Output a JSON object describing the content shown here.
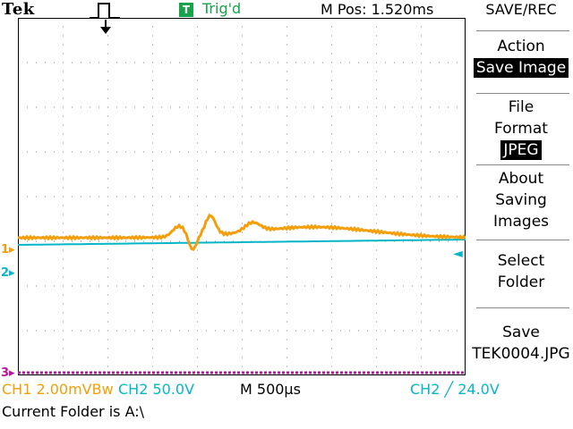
{
  "brand": "Tek",
  "trigger": {
    "badge": "T",
    "status": "Trig'd"
  },
  "position": "M Pos: 1.520ms",
  "markers": {
    "ch1": "1",
    "ch2": "2",
    "ch3": "3"
  },
  "menu": {
    "title": "SAVE/REC",
    "items": [
      {
        "lines": [
          "Action"
        ],
        "selected": "Save Image"
      },
      {
        "lines": [
          "File",
          "Format"
        ],
        "selected": "JPEG"
      },
      {
        "lines": [
          "About",
          "Saving",
          "Images"
        ]
      },
      {
        "lines": [
          "Select",
          "Folder"
        ]
      },
      {
        "lines": [
          "Save",
          "TEK0004.JPG"
        ]
      }
    ]
  },
  "status": {
    "ch1": "CH1  2.00mVBw",
    "ch2": "CH2  50.0V",
    "timebase": "M 500µs",
    "trigger": "CH2 ╱ 24.0V",
    "folder": "Current Folder is A:\\"
  },
  "colors": {
    "ch1": "#f59e0b",
    "ch2": "#06b6c8",
    "ch3": "#b5179e",
    "trig": "#16a34a"
  }
}
